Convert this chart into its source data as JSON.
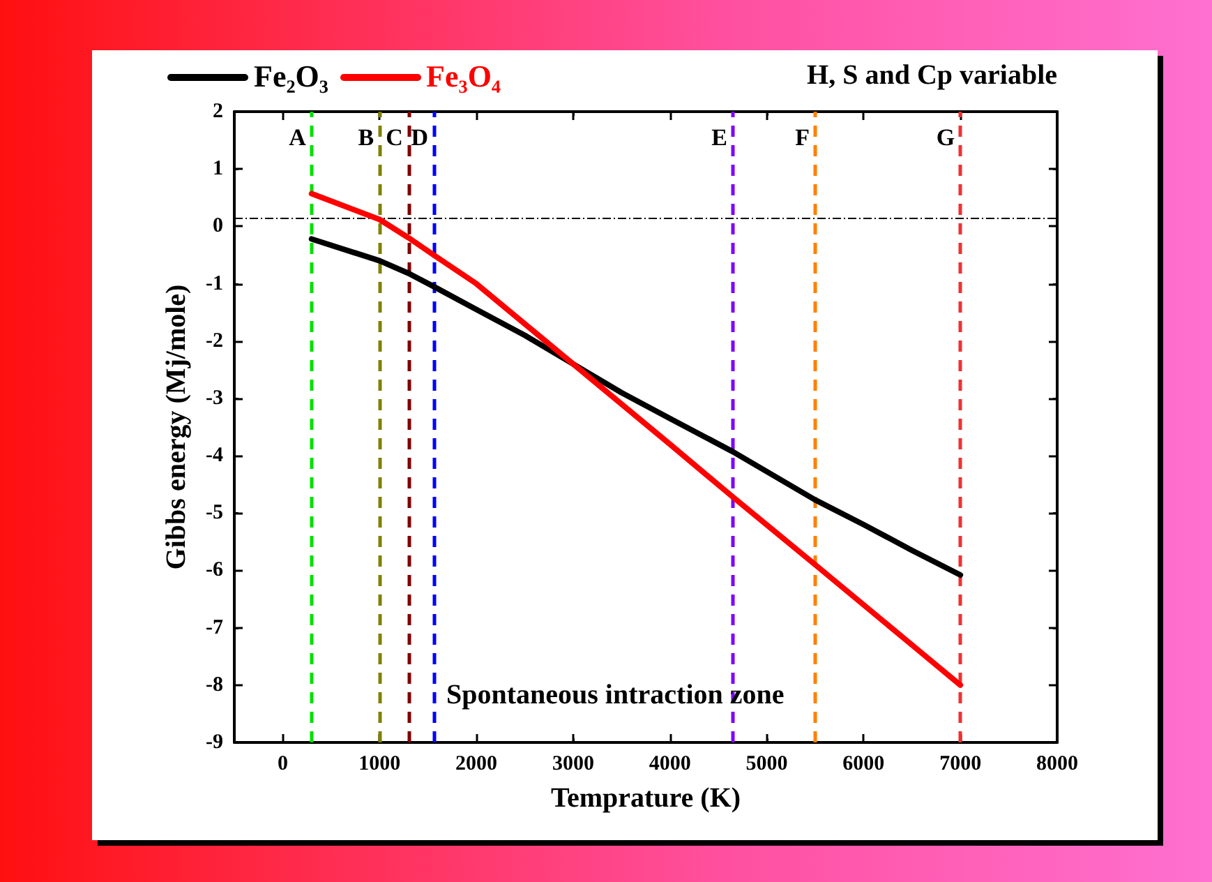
{
  "chart_data": {
    "type": "line",
    "xlabel": "Temprature (K)",
    "ylabel": "Gibbs energy (Mj/mole)",
    "x": [
      298,
      1000,
      1300,
      1560,
      2000,
      2500,
      3000,
      3500,
      4000,
      4650,
      5500,
      6000,
      6500,
      7000
    ],
    "series": [
      {
        "name": "Fe₂O₃",
        "color": "#000000",
        "values": [
          -0.22,
          -0.6,
          -0.82,
          -1.05,
          -1.45,
          -1.9,
          -2.4,
          -2.9,
          -3.35,
          -3.93,
          -4.77,
          -5.2,
          -5.65,
          -6.08
        ]
      },
      {
        "name": "Fe₃O₄",
        "color": "#ff0000",
        "values": [
          0.57,
          0.12,
          -0.2,
          -0.5,
          -1.0,
          -1.7,
          -2.4,
          -3.1,
          -3.8,
          -4.72,
          -5.9,
          -6.6,
          -7.3,
          -8.0
        ]
      }
    ],
    "xlim": [
      -500,
      8000
    ],
    "xticks": [
      0,
      1000,
      2000,
      3000,
      4000,
      5000,
      6000,
      7000,
      8000
    ],
    "ylim": [
      -9,
      2
    ],
    "yticks": [
      -9,
      -8,
      -7,
      -6,
      -5,
      -4,
      -3,
      -2,
      -1,
      0,
      1,
      2
    ],
    "ref_lines": [
      {
        "axis": "x",
        "value": 298,
        "label": "A",
        "color": "#00e000",
        "line_style": "dashed"
      },
      {
        "axis": "x",
        "value": 1000,
        "label": "B",
        "color": "#808000",
        "line_style": "dashed"
      },
      {
        "axis": "x",
        "value": 1300,
        "label": "C",
        "color": "#800000",
        "line_style": "dashed"
      },
      {
        "axis": "x",
        "value": 1560,
        "label": "D",
        "color": "#0000ff",
        "line_style": "dashed"
      },
      {
        "axis": "x",
        "value": 4650,
        "label": "E",
        "color": "#8000ff",
        "line_style": "dashed"
      },
      {
        "axis": "x",
        "value": 5500,
        "label": "F",
        "color": "#ff8000",
        "line_style": "dashed"
      },
      {
        "axis": "x",
        "value": 7000,
        "label": "G",
        "color": "#f03030",
        "line_style": "dashed"
      },
      {
        "axis": "y",
        "value": 0.15,
        "label": null,
        "color": "#000000",
        "line_style": "dotted"
      }
    ],
    "annotations": [
      "H, S and Cp variable",
      "Spontaneous intraction zone"
    ],
    "legend": "top left",
    "grid": false,
    "marker": "none",
    "line_style": "solid"
  }
}
